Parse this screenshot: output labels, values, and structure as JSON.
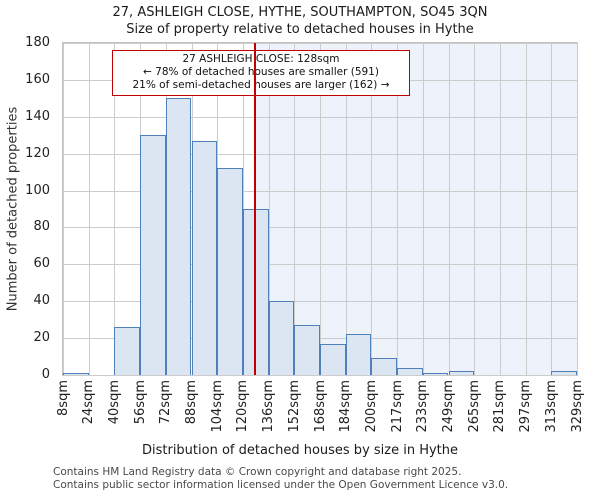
{
  "page": {
    "title": "27, ASHLEIGH CLOSE, HYTHE, SOUTHAMPTON, SO45 3QN",
    "subtitle": "Size of property relative to detached houses in Hythe",
    "footer_line1": "Contains HM Land Registry data © Crown copyright and database right 2025.",
    "footer_line2": "Contains public sector information licensed under the Open Government Licence v3.0."
  },
  "chart_data": {
    "type": "bar",
    "title": "27, ASHLEIGH CLOSE, HYTHE, SOUTHAMPTON, SO45 3QN",
    "subtitle": "Size of property relative to detached houses in Hythe",
    "xlabel": "Distribution of detached houses by size in Hythe",
    "ylabel": "Number of detached properties",
    "ylim": [
      0,
      180
    ],
    "yticks": [
      0,
      20,
      40,
      60,
      80,
      100,
      120,
      140,
      160,
      180
    ],
    "grid": true,
    "legend": "none",
    "bin_range_sqm": [
      8,
      329
    ],
    "xtick_labels": [
      "8sqm",
      "24sqm",
      "40sqm",
      "56sqm",
      "72sqm",
      "88sqm",
      "104sqm",
      "120sqm",
      "136sqm",
      "152sqm",
      "168sqm",
      "184sqm",
      "200sqm",
      "217sqm",
      "233sqm",
      "249sqm",
      "265sqm",
      "281sqm",
      "297sqm",
      "313sqm",
      "329sqm"
    ],
    "categories": [
      "8-24",
      "24-40",
      "40-56",
      "56-72",
      "72-88",
      "88-104",
      "104-120",
      "120-136",
      "136-152",
      "152-168",
      "168-184",
      "184-200",
      "200-217",
      "217-233",
      "233-249",
      "249-265",
      "265-281",
      "281-297",
      "297-313",
      "313-329"
    ],
    "values": [
      1,
      0,
      26,
      130,
      150,
      127,
      112,
      90,
      40,
      27,
      17,
      22,
      9,
      4,
      1,
      2,
      0,
      0,
      0,
      2
    ],
    "marker": {
      "sqm": 128
    },
    "annotation": {
      "line1": "27 ASHLEIGH CLOSE: 128sqm",
      "line2": "← 78% of detached houses are smaller (591)",
      "line3": "21% of semi-detached houses are larger (162) →"
    },
    "colors": {
      "bar_fill": "#dce6f2",
      "bar_border": "#4e80bc",
      "marker_line": "#c00000",
      "annotation_border": "#c00000",
      "shade_right_of_marker": "#eef2fb",
      "gridline": "#cccccc"
    }
  }
}
